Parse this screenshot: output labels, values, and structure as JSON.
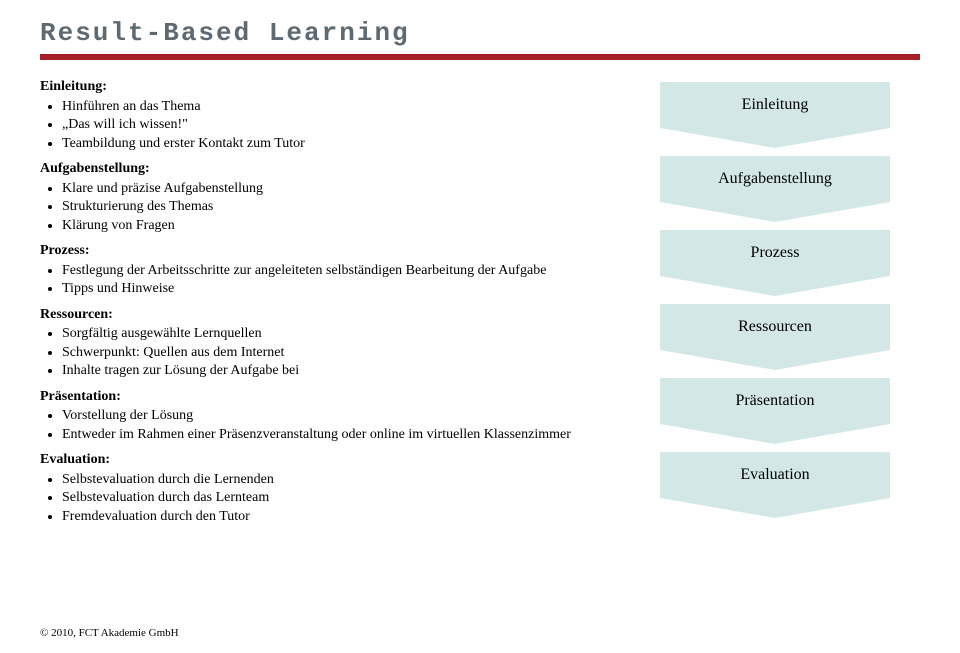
{
  "title": "Result-Based Learning",
  "sections": {
    "einleitung": {
      "heading": "Einleitung:",
      "items": [
        "Hinführen an das Thema",
        "„Das will ich wissen!\"",
        "Teambildung und erster Kontakt zum Tutor"
      ]
    },
    "aufgabenstellung": {
      "heading": "Aufgabenstellung:",
      "items": [
        "Klare und präzise Aufgabenstellung",
        "Strukturierung des Themas",
        "Klärung von Fragen"
      ]
    },
    "prozess": {
      "heading": "Prozess:",
      "items": [
        "Festlegung der Arbeitsschritte zur angeleiteten selbständigen Bearbeitung der Aufgabe",
        "Tipps und Hinweise"
      ]
    },
    "ressourcen": {
      "heading": "Ressourcen:",
      "items": [
        "Sorgfältig ausgewählte Lernquellen",
        "Schwerpunkt: Quellen aus dem Internet",
        "Inhalte tragen zur Lösung der Aufgabe bei"
      ]
    },
    "praesentation": {
      "heading": "Präsentation:",
      "items": [
        "Vorstellung der Lösung",
        "Entweder im Rahmen einer Präsenzveranstaltung oder online im virtuellen Klassenzimmer"
      ]
    },
    "evaluation": {
      "heading": "Evaluation:",
      "items": [
        "Selbstevaluation durch die Lernenden",
        "Selbstevaluation durch das Lernteam",
        "Fremdevaluation durch den Tutor"
      ]
    }
  },
  "flow": {
    "box_color": "#d2e7e6",
    "text_color": "#000000",
    "steps": [
      "Einleitung",
      "Aufgabenstellung",
      "Prozess",
      "Ressourcen",
      "Präsentation",
      "Evaluation"
    ]
  },
  "footer": "© 2010, FCT Akademie GmbH",
  "colors": {
    "title_color": "#5e6a73",
    "rule_color": "#a62029",
    "background": "#ffffff"
  }
}
